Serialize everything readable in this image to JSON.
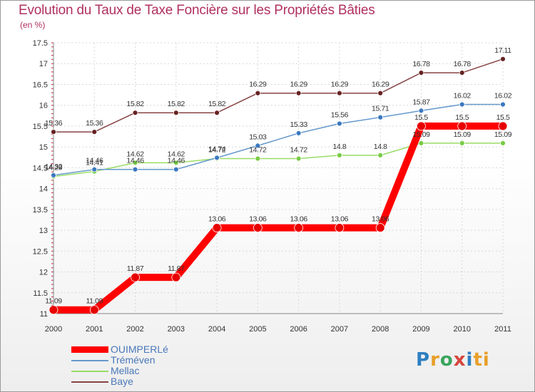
{
  "page": {
    "title": "Evolution du Taux de Taxe Foncière sur les Propriétés Bâties",
    "subtitle": "(en %)"
  },
  "logo": {
    "text": "Proxiti",
    "letters": [
      "P",
      "r",
      "o",
      "x",
      "i",
      "ti"
    ]
  },
  "chart_data": {
    "type": "line",
    "title": "Evolution du Taux de Taxe Foncière sur les Propriétés Bâties",
    "ylabel": "(en %)",
    "xlabel": "",
    "x": [
      "2000",
      "2001",
      "2002",
      "2003",
      "2004",
      "2005",
      "2006",
      "2007",
      "2008",
      "2009",
      "2010",
      "2011"
    ],
    "ylim": [
      11,
      17.5
    ],
    "yticks": [
      "11",
      "11.5",
      "12",
      "12.5",
      "13",
      "13.5",
      "14",
      "14.5",
      "15",
      "15.5",
      "16",
      "16.5",
      "17",
      "17.5"
    ],
    "grid": true,
    "series": [
      {
        "name": "OUIMPERLé",
        "color": "#ff0000",
        "point_color": "#e80000",
        "values": [
          11.09,
          11.09,
          11.87,
          11.87,
          13.06,
          13.06,
          13.06,
          13.06,
          13.06,
          15.5,
          15.5,
          15.5
        ],
        "labels": [
          "11.09",
          "11.09",
          "11.87",
          "11.87",
          "13.06",
          "13.06",
          "13.06",
          "13.06",
          "13.06",
          "15.5",
          "15.5",
          "15.5"
        ]
      },
      {
        "name": "Tréméven",
        "color": "#6699cc",
        "point_color": "#3a78c0",
        "values": [
          14.32,
          14.46,
          14.46,
          14.46,
          14.74,
          15.03,
          15.33,
          15.56,
          15.71,
          15.87,
          16.02,
          16.02
        ],
        "labels": [
          "14.32",
          "14.46",
          "14.46",
          "14.46",
          "14.74",
          "15.03",
          "15.33",
          "15.56",
          "15.71",
          "15.87",
          "16.02",
          "16.02"
        ]
      },
      {
        "name": "Mellac",
        "color": "#99dd66",
        "point_color": "#77cc44",
        "values": [
          14.29,
          14.41,
          14.62,
          14.62,
          14.72,
          14.72,
          14.72,
          14.8,
          14.8,
          15.09,
          15.09,
          15.09
        ],
        "labels": [
          "14.29",
          "14.41",
          "14.62",
          "14.62",
          "14.72",
          "14.72",
          "14.72",
          "14.8",
          "14.8",
          "15.09",
          "15.09",
          "15.09"
        ]
      },
      {
        "name": "Baye",
        "color": "#884444",
        "point_color": "#662222",
        "values": [
          15.36,
          15.36,
          15.82,
          15.82,
          15.82,
          16.29,
          16.29,
          16.29,
          16.29,
          16.78,
          16.78,
          17.11
        ],
        "labels": [
          "15.36",
          "15.36",
          "15.82",
          "15.82",
          "15.82",
          "16.29",
          "16.29",
          "16.29",
          "16.29",
          "16.78",
          "16.78",
          "17.11"
        ]
      }
    ]
  }
}
